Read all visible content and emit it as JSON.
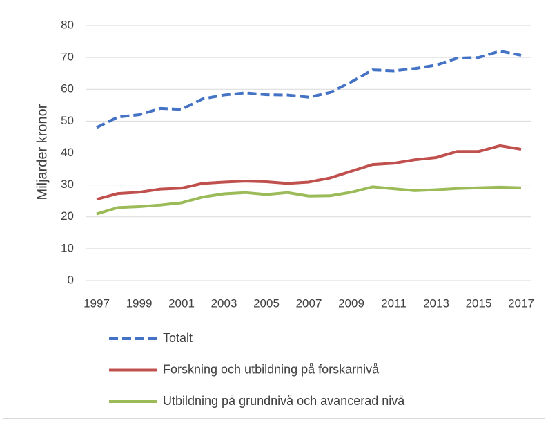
{
  "chart_data": {
    "type": "line",
    "y_label": "Miljarder kronor",
    "x": [
      1997,
      1998,
      1999,
      2000,
      2001,
      2002,
      2003,
      2004,
      2005,
      2006,
      2007,
      2008,
      2009,
      2010,
      2011,
      2012,
      2013,
      2014,
      2015,
      2016,
      2017
    ],
    "xlim": [
      1997,
      2017
    ],
    "xticks": [
      1997,
      1999,
      2001,
      2003,
      2005,
      2007,
      2009,
      2011,
      2013,
      2015,
      2017
    ],
    "ylim": [
      0,
      80
    ],
    "yticks": [
      0,
      10,
      20,
      30,
      40,
      50,
      60,
      70,
      80
    ],
    "grid": true,
    "legend": "bottom",
    "series": [
      {
        "name": "Totalt",
        "color": "#4472c4",
        "dashed": true,
        "values": [
          48,
          51.3,
          52,
          54,
          53.7,
          57,
          58.2,
          58.9,
          58.3,
          58.2,
          57.5,
          59,
          62.3,
          66.1,
          65.8,
          66.5,
          67.6,
          69.8,
          70,
          72,
          70.7
        ]
      },
      {
        "name": "Forskning och utbildning på forskarnivå",
        "color": "#c0504d",
        "dashed": false,
        "values": [
          25.5,
          27.3,
          27.7,
          28.7,
          29,
          30.5,
          30.9,
          31.2,
          31,
          30.5,
          30.9,
          32.2,
          34.3,
          36.4,
          36.8,
          37.9,
          38.6,
          40.5,
          40.5,
          42.3,
          41.2
        ]
      },
      {
        "name": "Utbildning på grundnivå och avancerad nivå",
        "color": "#9bbb59",
        "dashed": false,
        "values": [
          20.9,
          22.9,
          23.2,
          23.7,
          24.4,
          26.2,
          27.2,
          27.6,
          27,
          27.6,
          26.5,
          26.6,
          27.7,
          29.4,
          28.8,
          28.2,
          28.5,
          28.9,
          29.1,
          29.3,
          29.1
        ]
      }
    ]
  }
}
